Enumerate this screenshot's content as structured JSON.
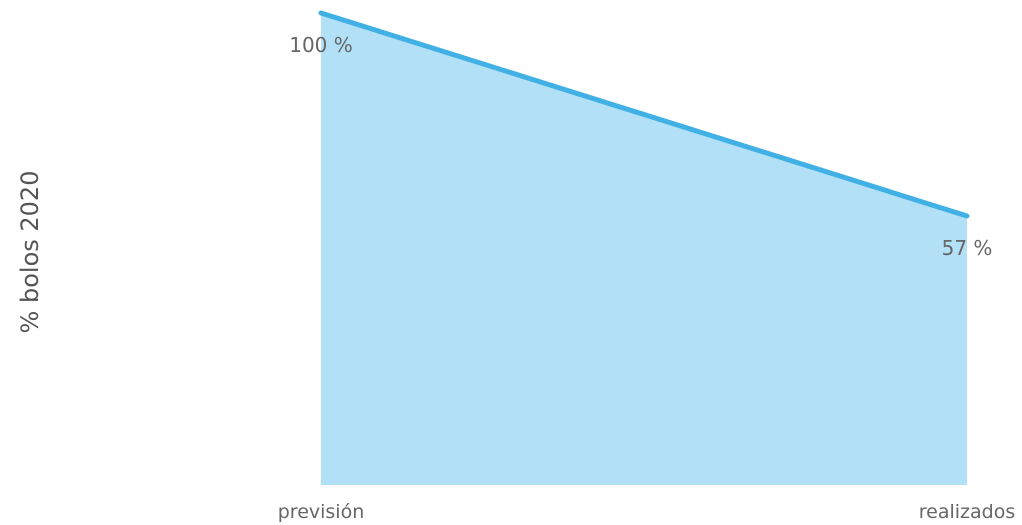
{
  "chart_data": {
    "type": "area",
    "categories": [
      "previsión",
      "realizados"
    ],
    "values": [
      100,
      57
    ],
    "data_labels": [
      "100 %",
      "57 %"
    ],
    "title": "",
    "xlabel": "",
    "ylabel": "% bolos 2020",
    "ylim": [
      0,
      100
    ],
    "grid": false,
    "legend": "none",
    "colors": {
      "line": "#41b0e4",
      "fill": "#b2e0f6",
      "text": "#666666"
    }
  }
}
